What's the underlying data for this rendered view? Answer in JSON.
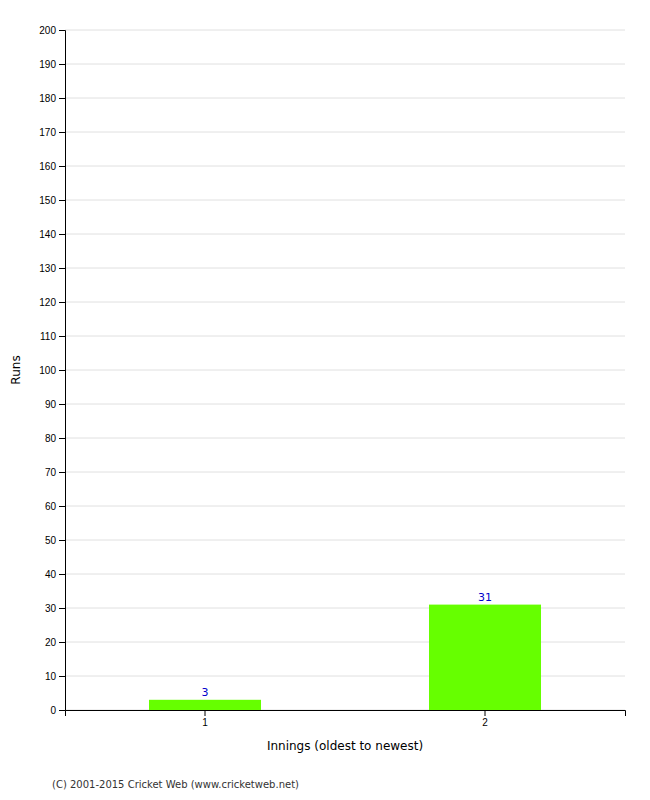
{
  "chart_data": {
    "type": "bar",
    "categories": [
      "1",
      "2"
    ],
    "values": [
      3,
      31
    ],
    "color": "#66ff00",
    "xlabel": "Innings (oldest to newest)",
    "ylabel": "Runs",
    "ylim": [
      0,
      200
    ],
    "yticks": [
      0,
      10,
      20,
      30,
      40,
      50,
      60,
      70,
      80,
      90,
      100,
      110,
      120,
      130,
      140,
      150,
      160,
      170,
      180,
      190,
      200
    ],
    "grid": true,
    "data_labels": true,
    "annotations": [
      "(C) 2001-2015 Cricket Web (www.cricketweb.net)"
    ]
  }
}
